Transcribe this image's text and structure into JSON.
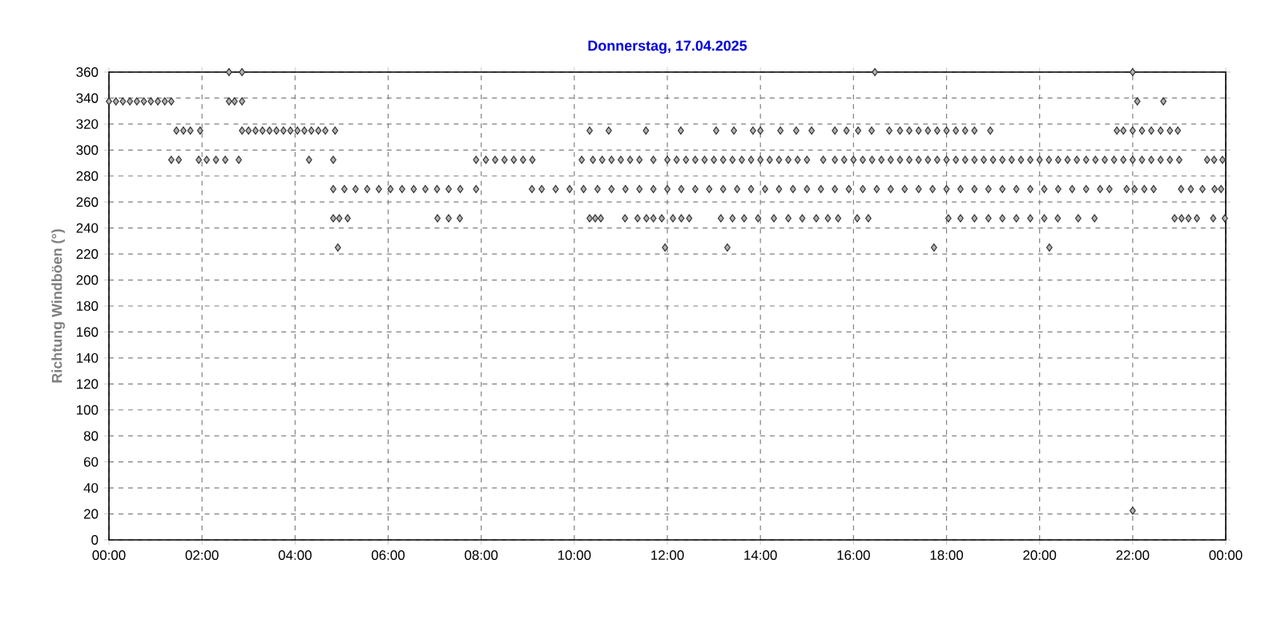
{
  "chart_data": {
    "type": "scatter",
    "title": "Donnerstag, 17.04.2025",
    "ylabel": "Richtung Windböen (°)",
    "xlim": [
      0,
      24
    ],
    "ylim": [
      0,
      360
    ],
    "xticks": [
      {
        "value": 0,
        "label": "00:00"
      },
      {
        "value": 2,
        "label": "02:00"
      },
      {
        "value": 4,
        "label": "04:00"
      },
      {
        "value": 6,
        "label": "06:00"
      },
      {
        "value": 8,
        "label": "08:00"
      },
      {
        "value": 10,
        "label": "10:00"
      },
      {
        "value": 12,
        "label": "12:00"
      },
      {
        "value": 14,
        "label": "14:00"
      },
      {
        "value": 16,
        "label": "16:00"
      },
      {
        "value": 18,
        "label": "18:00"
      },
      {
        "value": 20,
        "label": "20:00"
      },
      {
        "value": 22,
        "label": "22:00"
      },
      {
        "value": 24,
        "label": "00:00"
      }
    ],
    "yticks": [
      0,
      20,
      40,
      60,
      80,
      100,
      120,
      140,
      160,
      180,
      200,
      220,
      240,
      260,
      280,
      300,
      320,
      340,
      360
    ],
    "grid": true,
    "marker": "diamond",
    "series": [
      {
        "color": "#333333",
        "x": [
          2.58,
          2.86,
          16.46,
          22.0
        ],
        "values": [
          360,
          360,
          360,
          360
        ]
      },
      {
        "color": "#333333",
        "x": [
          0,
          0.15,
          0.3,
          0.45,
          0.6,
          0.75,
          0.9,
          1.05,
          1.2,
          1.34,
          2.58,
          2.7,
          2.86,
          22.1,
          22.66
        ],
        "values": [
          337.5,
          337.5,
          337.5,
          337.5,
          337.5,
          337.5,
          337.5,
          337.5,
          337.5,
          337.5,
          337.5,
          337.5,
          337.5,
          337.5,
          337.5
        ]
      },
      {
        "color": "#333333",
        "x": [
          1.45,
          1.6,
          1.75,
          1.96,
          2.86,
          3.0,
          3.15,
          3.3,
          3.45,
          3.6,
          3.75,
          3.9,
          4.05,
          4.2,
          4.35,
          4.5,
          4.65,
          4.86,
          10.33,
          10.74,
          11.54,
          12.29,
          13.05,
          13.43,
          13.84,
          14.0,
          14.43,
          14.77,
          15.1,
          15.6,
          15.85,
          16.1,
          16.39,
          16.77,
          17.0,
          17.2,
          17.4,
          17.6,
          17.8,
          18.0,
          18.2,
          18.4,
          18.6,
          18.94,
          21.66,
          21.8,
          22.0,
          22.2,
          22.4,
          22.6,
          22.8,
          22.97
        ],
        "values": [
          315,
          315,
          315,
          315,
          315,
          315,
          315,
          315,
          315,
          315,
          315,
          315,
          315,
          315,
          315,
          315,
          315,
          315,
          315,
          315,
          315,
          315,
          315,
          315,
          315,
          315,
          315,
          315,
          315,
          315,
          315,
          315,
          315,
          315,
          315,
          315,
          315,
          315,
          315,
          315,
          315,
          315,
          315,
          315,
          315,
          315,
          315,
          315,
          315,
          315,
          315,
          315
        ]
      },
      {
        "color": "#333333",
        "x": [
          1.34,
          1.5,
          1.93,
          2.1,
          2.3,
          2.5,
          2.79,
          4.3,
          4.82,
          7.89,
          8.1,
          8.3,
          8.5,
          8.7,
          8.9,
          9.1,
          10.16,
          10.4,
          10.6,
          10.8,
          11.0,
          11.2,
          11.4,
          11.7,
          12.0,
          12.2,
          12.4,
          12.6,
          12.8,
          13.0,
          13.2,
          13.4,
          13.6,
          13.8,
          14.0,
          14.2,
          14.4,
          14.6,
          14.8,
          15.0,
          15.35,
          15.6,
          15.8,
          16.0,
          16.2,
          16.4,
          16.6,
          16.8,
          17.0,
          17.2,
          17.4,
          17.6,
          17.8,
          18.0,
          18.2,
          18.4,
          18.6,
          18.8,
          19.0,
          19.2,
          19.4,
          19.6,
          19.8,
          20.0,
          20.2,
          20.4,
          20.6,
          20.8,
          21.0,
          21.2,
          21.4,
          21.6,
          21.8,
          22.0,
          22.2,
          22.4,
          22.6,
          22.8,
          23.0,
          23.6,
          23.75,
          23.93
        ],
        "values": [
          292.5,
          292.5,
          292.5,
          292.5,
          292.5,
          292.5,
          292.5,
          292.5,
          292.5,
          292.5,
          292.5,
          292.5,
          292.5,
          292.5,
          292.5,
          292.5,
          292.5,
          292.5,
          292.5,
          292.5,
          292.5,
          292.5,
          292.5,
          292.5,
          292.5,
          292.5,
          292.5,
          292.5,
          292.5,
          292.5,
          292.5,
          292.5,
          292.5,
          292.5,
          292.5,
          292.5,
          292.5,
          292.5,
          292.5,
          292.5,
          292.5,
          292.5,
          292.5,
          292.5,
          292.5,
          292.5,
          292.5,
          292.5,
          292.5,
          292.5,
          292.5,
          292.5,
          292.5,
          292.5,
          292.5,
          292.5,
          292.5,
          292.5,
          292.5,
          292.5,
          292.5,
          292.5,
          292.5,
          292.5,
          292.5,
          292.5,
          292.5,
          292.5,
          292.5,
          292.5,
          292.5,
          292.5,
          292.5,
          292.5,
          292.5,
          292.5,
          292.5,
          292.5,
          292.5,
          292.5,
          292.5,
          292.5
        ]
      },
      {
        "color": "#333333",
        "x": [
          4.82,
          5.06,
          5.3,
          5.55,
          5.8,
          6.05,
          6.3,
          6.55,
          6.8,
          7.05,
          7.3,
          7.55,
          7.89,
          9.09,
          9.3,
          9.6,
          9.9,
          10.2,
          10.5,
          10.8,
          11.1,
          11.4,
          11.7,
          12.0,
          12.3,
          12.6,
          12.9,
          13.2,
          13.5,
          13.8,
          14.1,
          14.4,
          14.7,
          15.0,
          15.3,
          15.6,
          15.9,
          16.2,
          16.5,
          16.8,
          17.1,
          17.4,
          17.7,
          18.0,
          18.3,
          18.6,
          18.9,
          19.2,
          19.5,
          19.8,
          20.1,
          20.4,
          20.7,
          21.0,
          21.3,
          21.5,
          21.87,
          22.04,
          22.25,
          22.45,
          23.04,
          23.25,
          23.5,
          23.76,
          23.9
        ],
        "values": [
          270,
          270,
          270,
          270,
          270,
          270,
          270,
          270,
          270,
          270,
          270,
          270,
          270,
          270,
          270,
          270,
          270,
          270,
          270,
          270,
          270,
          270,
          270,
          270,
          270,
          270,
          270,
          270,
          270,
          270,
          270,
          270,
          270,
          270,
          270,
          270,
          270,
          270,
          270,
          270,
          270,
          270,
          270,
          270,
          270,
          270,
          270,
          270,
          270,
          270,
          270,
          270,
          270,
          270,
          270,
          270,
          270,
          270,
          270,
          270,
          270,
          270,
          270,
          270,
          270
        ]
      },
      {
        "color": "#333333",
        "x": [
          4.82,
          4.95,
          5.13,
          7.06,
          7.3,
          7.54,
          10.33,
          10.45,
          10.57,
          11.09,
          11.36,
          11.55,
          11.7,
          11.88,
          12.12,
          12.3,
          12.47,
          13.15,
          13.4,
          13.65,
          13.95,
          14.29,
          14.6,
          14.9,
          15.2,
          15.45,
          15.67,
          16.08,
          16.32,
          18.04,
          18.3,
          18.6,
          18.9,
          19.2,
          19.5,
          19.8,
          20.1,
          20.39,
          20.83,
          21.18,
          22.9,
          23.05,
          23.2,
          23.38,
          23.73,
          23.98
        ],
        "values": [
          247.5,
          247.5,
          247.5,
          247.5,
          247.5,
          247.5,
          247.5,
          247.5,
          247.5,
          247.5,
          247.5,
          247.5,
          247.5,
          247.5,
          247.5,
          247.5,
          247.5,
          247.5,
          247.5,
          247.5,
          247.5,
          247.5,
          247.5,
          247.5,
          247.5,
          247.5,
          247.5,
          247.5,
          247.5,
          247.5,
          247.5,
          247.5,
          247.5,
          247.5,
          247.5,
          247.5,
          247.5,
          247.5,
          247.5,
          247.5,
          247.5,
          247.5,
          247.5,
          247.5,
          247.5,
          247.5
        ]
      },
      {
        "color": "#333333",
        "x": [
          4.92,
          11.95,
          13.29,
          17.73,
          20.21
        ],
        "values": [
          225,
          225,
          225,
          225,
          225
        ]
      },
      {
        "color": "#333333",
        "x": [
          22.0
        ],
        "values": [
          22.5
        ]
      }
    ]
  }
}
